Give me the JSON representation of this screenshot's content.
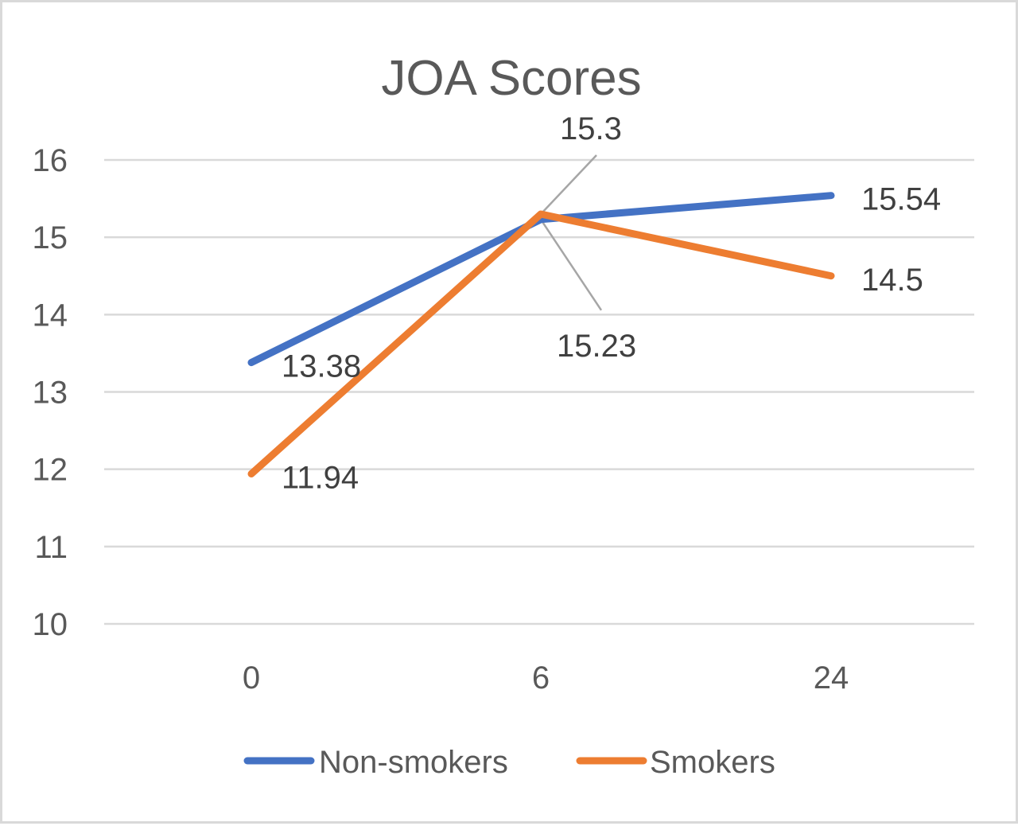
{
  "chart_data": {
    "type": "line",
    "title": "JOA Scores",
    "xlabel": "",
    "ylabel": "",
    "categories": [
      "0",
      "6",
      "24"
    ],
    "ylim": [
      10,
      16
    ],
    "yticks": [
      10,
      11,
      12,
      13,
      14,
      15,
      16
    ],
    "grid": true,
    "legend_position": "bottom",
    "series": [
      {
        "name": "Non-smokers",
        "values": [
          13.38,
          15.23,
          15.54
        ],
        "labels": [
          "13.38",
          "15.23",
          "15.54"
        ],
        "color": "#4472c4"
      },
      {
        "name": "Smokers",
        "values": [
          11.94,
          15.3,
          14.5
        ],
        "labels": [
          "11.94",
          "15.3",
          "14.5"
        ],
        "color": "#ed7d31"
      }
    ]
  }
}
